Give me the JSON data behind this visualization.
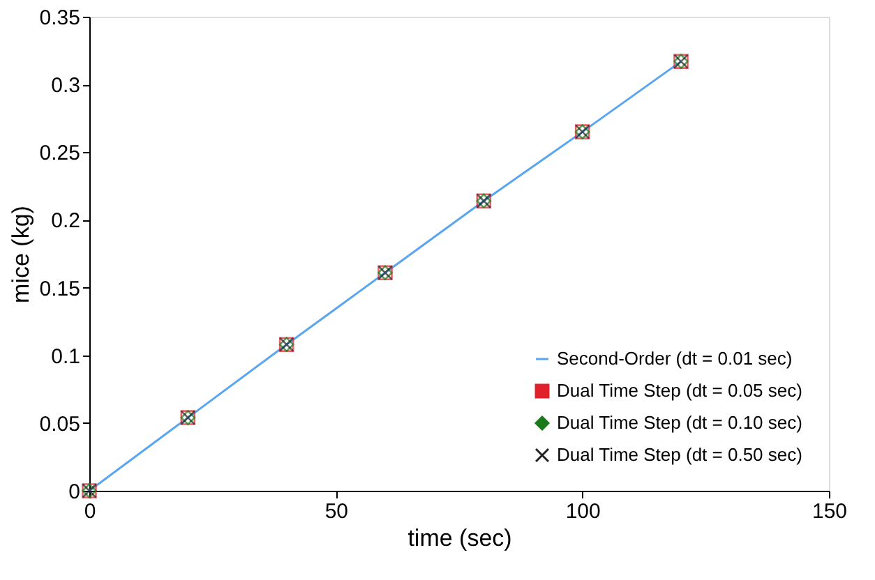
{
  "chart_data": {
    "type": "scatter",
    "xlabel": "time (sec)",
    "ylabel": "mice (kg)",
    "x": [
      0,
      20,
      40,
      60,
      80,
      100,
      120
    ],
    "series": [
      {
        "name": "Second-Order (dt = 0.01 sec)",
        "type": "line",
        "color": "#5aa5f0",
        "marker": "none",
        "values": [
          0,
          0.054,
          0.108,
          0.161,
          0.214,
          0.265,
          0.317
        ]
      },
      {
        "name": "Dual Time Step (dt = 0.05 sec)",
        "color": "#e0202a",
        "marker": "square",
        "values": [
          0,
          0.054,
          0.108,
          0.161,
          0.214,
          0.265,
          0.317
        ]
      },
      {
        "name": "Dual Time Step (dt = 0.10 sec)",
        "color": "#1a7a1a",
        "marker": "diamond",
        "values": [
          0,
          0.054,
          0.108,
          0.161,
          0.214,
          0.265,
          0.317
        ]
      },
      {
        "name": "Dual Time Step (dt = 0.50 sec)",
        "color": "#222222",
        "marker": "cross",
        "values": [
          0,
          0.054,
          0.108,
          0.161,
          0.214,
          0.265,
          0.317
        ]
      }
    ],
    "xlim": [
      0,
      150
    ],
    "xticks": [
      0,
      50,
      100,
      150
    ],
    "ylim": [
      0,
      0.35
    ],
    "yticks": [
      0,
      0.05,
      0.1,
      0.15,
      0.2,
      0.25,
      0.3,
      0.35
    ],
    "grid": false,
    "legend": "bottom right"
  }
}
